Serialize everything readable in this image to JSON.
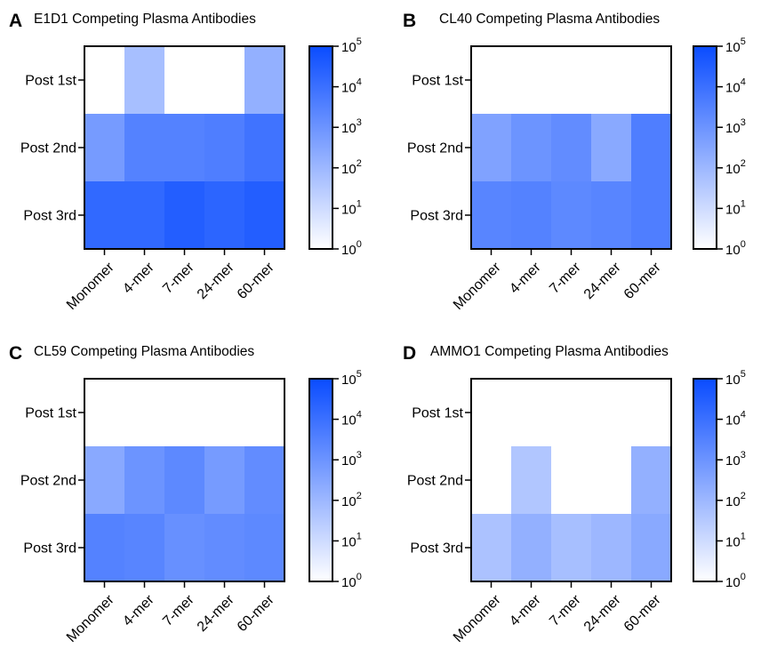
{
  "chart_data": [
    {
      "type": "heatmap",
      "panel": "A",
      "title": "E1D1 Competing Plasma Antibodies",
      "rows": [
        "Post 1st",
        "Post 2nd",
        "Post 3rd"
      ],
      "columns": [
        "Monomer",
        "4-mer",
        "7-mer",
        "24-mer",
        "60-mer"
      ],
      "values_log10": [
        [
          0.0,
          1.8,
          0.0,
          0.0,
          2.2
        ],
        [
          2.8,
          3.5,
          3.5,
          3.6,
          3.9
        ],
        [
          4.2,
          4.2,
          4.5,
          4.3,
          4.5
        ]
      ],
      "colorbar": {
        "scale": "log",
        "min": 1,
        "max": 100000,
        "ticks": [
          "10^0",
          "10^1",
          "10^2",
          "10^3",
          "10^4",
          "10^5"
        ]
      }
    },
    {
      "type": "heatmap",
      "panel": "B",
      "title": "CL40 Competing Plasma Antibodies",
      "rows": [
        "Post 1st",
        "Post 2nd",
        "Post 3rd"
      ],
      "columns": [
        "Monomer",
        "4-mer",
        "7-mer",
        "24-mer",
        "60-mer"
      ],
      "values_log10": [
        [
          0.0,
          0.0,
          0.0,
          0.0,
          0.0
        ],
        [
          2.6,
          3.0,
          3.2,
          2.4,
          3.6
        ],
        [
          3.4,
          3.5,
          3.3,
          3.4,
          3.6
        ]
      ],
      "colorbar": {
        "scale": "log",
        "min": 1,
        "max": 100000,
        "ticks": [
          "10^0",
          "10^1",
          "10^2",
          "10^3",
          "10^4",
          "10^5"
        ]
      }
    },
    {
      "type": "heatmap",
      "panel": "C",
      "title": "CL59 Competing Plasma Antibodies",
      "rows": [
        "Post 1st",
        "Post 2nd",
        "Post 3rd"
      ],
      "columns": [
        "Monomer",
        "4-mer",
        "7-mer",
        "24-mer",
        "60-mer"
      ],
      "values_log10": [
        [
          0.0,
          0.0,
          0.0,
          0.0,
          0.0
        ],
        [
          2.4,
          3.0,
          3.3,
          2.8,
          3.2
        ],
        [
          3.5,
          3.4,
          3.1,
          3.2,
          3.3
        ]
      ],
      "colorbar": {
        "scale": "log",
        "min": 1,
        "max": 100000,
        "ticks": [
          "10^0",
          "10^1",
          "10^2",
          "10^3",
          "10^4",
          "10^5"
        ]
      }
    },
    {
      "type": "heatmap",
      "panel": "D",
      "title": "AMMO1 Competing Plasma Antibodies",
      "rows": [
        "Post 1st",
        "Post 2nd",
        "Post 3rd"
      ],
      "columns": [
        "Monomer",
        "4-mer",
        "7-mer",
        "24-mer",
        "60-mer"
      ],
      "values_log10": [
        [
          0.0,
          0.0,
          0.0,
          0.0,
          0.0
        ],
        [
          0.0,
          1.6,
          0.0,
          0.0,
          2.2
        ],
        [
          1.7,
          2.2,
          1.8,
          2.0,
          2.4
        ]
      ],
      "colorbar": {
        "scale": "log",
        "min": 1,
        "max": 100000,
        "ticks": [
          "10^0",
          "10^1",
          "10^2",
          "10^3",
          "10^4",
          "10^5"
        ]
      }
    }
  ],
  "colors": {
    "low": "#ffffff",
    "high": "#0a4cff",
    "axis": "#000000"
  }
}
